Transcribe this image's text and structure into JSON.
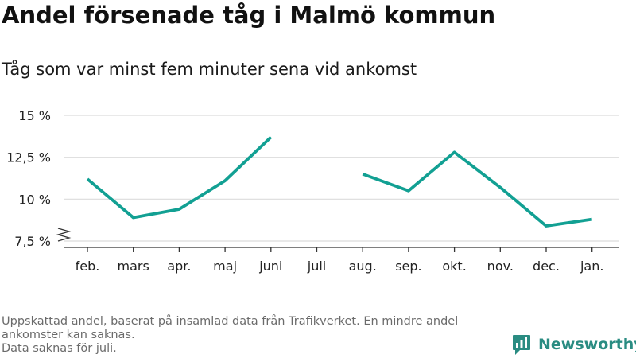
{
  "header": {
    "title": "Andel försenade tåg i Malmö kommun",
    "subtitle": "Tåg som var minst fem minuter sena vid ankomst"
  },
  "chart_data": {
    "type": "line",
    "categories": [
      "feb.",
      "mars",
      "apr.",
      "maj",
      "juni",
      "juli",
      "aug.",
      "sep.",
      "okt.",
      "nov.",
      "dec.",
      "jan."
    ],
    "series": [
      {
        "values": [
          11.2,
          8.9,
          9.4,
          11.1,
          13.7,
          null,
          11.5,
          10.5,
          12.8,
          10.7,
          8.4,
          8.8
        ]
      }
    ],
    "yticks": [
      7.5,
      10,
      12.5,
      15
    ],
    "ytick_labels": [
      "7,5 %",
      "10 %",
      "12,5 %",
      "15 %"
    ],
    "ylim": [
      7.5,
      15
    ],
    "axis_break": true,
    "grid": true,
    "line_color": "#12a093",
    "grid_color": "#dcdcdc"
  },
  "footer": {
    "note_line1": "Uppskattad andel, baserat på insamlad data från Trafikverket. En mindre andel ankomster kan saknas.",
    "note_line2": "Data saknas för juli.",
    "brand_name": "Newsworthy",
    "brand_color": "#2a8c82",
    "brand_icon": "bar-chart-speech-bubble-icon"
  }
}
